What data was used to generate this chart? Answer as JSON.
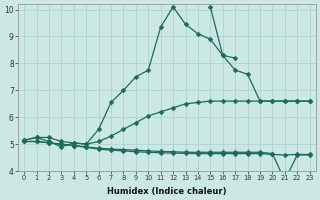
{
  "xlabel": "Humidex (Indice chaleur)",
  "bg_color": "#cce8e4",
  "line_color": "#1a6b5a",
  "grid_color": "#aacfcb",
  "xlim": [
    -0.5,
    23.5
  ],
  "ylim": [
    4,
    10.2
  ],
  "yticks": [
    4,
    5,
    6,
    7,
    8,
    9,
    10
  ],
  "xticks": [
    0,
    1,
    2,
    3,
    4,
    5,
    6,
    7,
    8,
    9,
    10,
    11,
    12,
    13,
    14,
    15,
    16,
    17,
    18,
    19,
    20,
    21,
    22,
    23
  ],
  "line1_x": [
    0,
    1,
    2,
    3,
    4,
    5,
    6,
    7,
    8,
    9,
    10,
    11,
    12,
    13,
    14,
    15,
    16,
    17,
    18,
    19,
    20,
    21,
    22,
    23
  ],
  "line1_y": [
    5.15,
    5.25,
    5.25,
    5.1,
    5.05,
    5.0,
    5.55,
    6.55,
    7.0,
    7.5,
    7.75,
    9.35,
    10.1,
    9.45,
    9.1,
    8.9,
    8.3,
    8.2,
    null,
    null,
    null,
    null,
    null,
    null
  ],
  "line2_x": [
    0,
    1,
    2,
    3,
    4,
    5,
    6,
    7,
    8,
    9,
    10,
    11,
    12,
    13,
    14,
    15,
    16,
    17,
    18,
    19,
    20,
    21,
    22,
    23
  ],
  "line2_y": [
    null,
    null,
    null,
    null,
    null,
    null,
    null,
    null,
    null,
    null,
    null,
    null,
    null,
    null,
    null,
    10.1,
    8.3,
    7.75,
    7.6,
    6.6,
    6.6,
    6.6,
    6.6,
    6.6
  ],
  "line3_x": [
    0,
    1,
    2,
    3,
    4,
    5,
    6,
    7,
    8,
    9,
    10,
    11,
    12,
    13,
    14,
    15,
    16,
    17,
    18,
    19,
    20,
    21,
    22,
    23
  ],
  "line3_y": [
    5.15,
    5.25,
    5.1,
    4.9,
    5.05,
    5.0,
    5.1,
    5.3,
    5.55,
    5.8,
    6.05,
    6.2,
    6.35,
    6.5,
    6.55,
    6.6,
    6.6,
    6.6,
    6.6,
    6.6,
    6.6,
    6.6,
    6.6,
    6.6
  ],
  "line4_x": [
    0,
    1,
    2,
    3,
    4,
    5,
    6,
    7,
    8,
    9,
    10,
    11,
    12,
    13,
    14,
    15,
    16,
    17,
    18,
    19,
    20,
    21,
    22,
    23
  ],
  "line4_y": [
    5.1,
    5.1,
    5.05,
    5.0,
    4.95,
    4.88,
    4.82,
    4.78,
    4.75,
    4.72,
    4.7,
    4.68,
    4.67,
    4.66,
    4.65,
    4.65,
    4.65,
    4.65,
    4.65,
    4.65,
    4.62,
    4.6,
    4.62,
    4.62
  ],
  "line5_x": [
    0,
    1,
    2,
    3,
    4,
    5,
    6,
    7,
    8,
    9,
    10,
    11,
    12,
    13,
    14,
    15,
    16,
    17,
    18,
    19,
    20,
    21,
    22,
    23
  ],
  "line5_y": [
    5.1,
    5.1,
    5.05,
    5.0,
    4.95,
    4.9,
    4.85,
    4.82,
    4.8,
    4.78,
    4.75,
    4.73,
    4.72,
    4.7,
    4.7,
    4.7,
    4.7,
    4.7,
    4.7,
    4.7,
    4.65,
    3.65,
    4.6,
    4.6
  ]
}
